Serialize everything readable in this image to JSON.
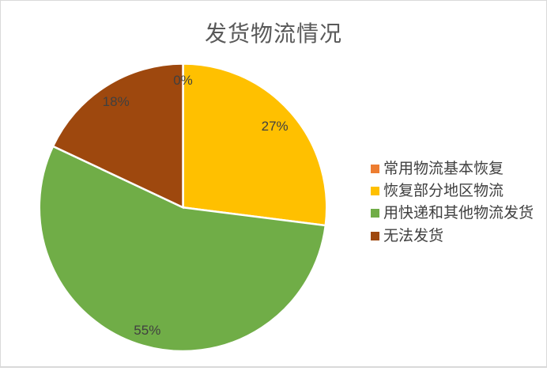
{
  "chart_data": {
    "type": "pie",
    "title": "发货物流情况",
    "slices": [
      {
        "label": "常用物流基本恢复",
        "value": 0,
        "pct_label": "0%",
        "color": "#ED7D31"
      },
      {
        "label": "恢复部分地区物流",
        "value": 27,
        "pct_label": "27%",
        "color": "#FFC000"
      },
      {
        "label": "用快递和其他物流发货",
        "value": 55,
        "pct_label": "55%",
        "color": "#70AD47"
      },
      {
        "label": "无法发货",
        "value": 18,
        "pct_label": "18%",
        "color": "#9E480E"
      }
    ],
    "legend_position": "right",
    "data_labels": "percent inside-end",
    "title_color": "#595959",
    "label_color": "#404040",
    "border_color": "#D9D9D9"
  }
}
